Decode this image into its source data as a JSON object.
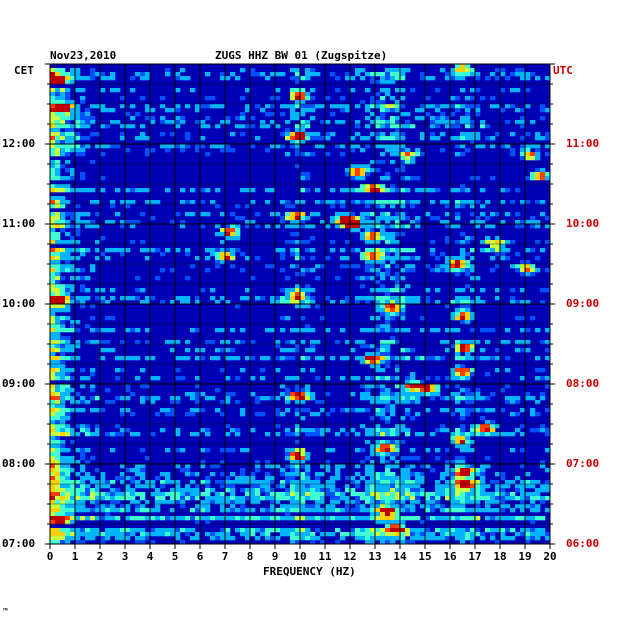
{
  "header": {
    "date": "Nov23,2010",
    "station": "ZUGS HHZ BW 01 (Zugspitze)",
    "left_zone": "CET",
    "right_zone": "UTC"
  },
  "footer": {
    "mark": "™"
  },
  "colors": {
    "background": "#0000b4",
    "grid": "#000000",
    "utc_labels": "#cc0000",
    "colormap": [
      "#000096",
      "#0000dc",
      "#0050ff",
      "#00b4ff",
      "#40ffd0",
      "#c8ff40",
      "#ffd000",
      "#ff4000",
      "#c00000"
    ]
  },
  "chart_data": {
    "type": "heatmap",
    "title": "ZUGS HHZ BW 01 (Zugspitze)",
    "subtitle": "Nov23,2010",
    "xlabel": "FREQUENCY (HZ)",
    "x_ticks": [
      0,
      1,
      2,
      3,
      4,
      5,
      6,
      7,
      8,
      9,
      10,
      11,
      12,
      13,
      14,
      15,
      16,
      17,
      18,
      19,
      20
    ],
    "xlim": [
      0,
      20
    ],
    "y_left_labels": [
      "12:00",
      "11:00",
      "10:00",
      "09:00",
      "08:00",
      "07:00"
    ],
    "y_right_labels": [
      "11:00",
      "10:00",
      "09:00",
      "08:00",
      "07:00",
      "06:00"
    ],
    "y_tick_hours_cet": [
      12,
      11,
      10,
      9,
      8,
      7
    ],
    "time_range_cet": [
      "07:00",
      "13:00"
    ],
    "time_direction": "newest at top",
    "grid": true,
    "hotspots": [
      {
        "f": 0.3,
        "t": 12.8,
        "level": 0.9
      },
      {
        "f": 0.5,
        "t": 12.45,
        "level": 0.85
      },
      {
        "f": 0.3,
        "t": 10.05,
        "level": 0.8
      },
      {
        "f": 0.4,
        "t": 7.3,
        "level": 0.8
      },
      {
        "f": 9.9,
        "t": 12.1,
        "level": 0.85
      },
      {
        "f": 10.0,
        "t": 12.6,
        "level": 0.7
      },
      {
        "f": 12.3,
        "t": 11.65,
        "level": 0.8
      },
      {
        "f": 12.9,
        "t": 11.45,
        "level": 0.7
      },
      {
        "f": 12.1,
        "t": 11.0,
        "level": 0.95
      },
      {
        "f": 11.8,
        "t": 11.05,
        "level": 0.8
      },
      {
        "f": 9.8,
        "t": 11.1,
        "level": 0.7
      },
      {
        "f": 7.2,
        "t": 10.9,
        "level": 0.8
      },
      {
        "f": 7.0,
        "t": 10.6,
        "level": 0.7
      },
      {
        "f": 12.9,
        "t": 10.85,
        "level": 0.75
      },
      {
        "f": 12.9,
        "t": 10.6,
        "level": 0.7
      },
      {
        "f": 16.3,
        "t": 10.5,
        "level": 0.75
      },
      {
        "f": 9.9,
        "t": 10.1,
        "level": 0.7
      },
      {
        "f": 13.7,
        "t": 9.95,
        "level": 0.75
      },
      {
        "f": 16.5,
        "t": 9.85,
        "level": 0.7
      },
      {
        "f": 16.6,
        "t": 9.45,
        "level": 0.8
      },
      {
        "f": 12.9,
        "t": 9.3,
        "level": 0.7
      },
      {
        "f": 16.5,
        "t": 9.15,
        "level": 0.75
      },
      {
        "f": 15.1,
        "t": 8.95,
        "level": 0.95
      },
      {
        "f": 14.5,
        "t": 8.98,
        "level": 0.8
      },
      {
        "f": 9.9,
        "t": 8.85,
        "level": 0.7
      },
      {
        "f": 17.4,
        "t": 8.45,
        "level": 0.75
      },
      {
        "f": 16.4,
        "t": 8.3,
        "level": 0.75
      },
      {
        "f": 13.4,
        "t": 8.2,
        "level": 0.8
      },
      {
        "f": 9.9,
        "t": 8.1,
        "level": 0.8
      },
      {
        "f": 16.6,
        "t": 7.9,
        "level": 0.85
      },
      {
        "f": 16.6,
        "t": 7.75,
        "level": 0.8
      },
      {
        "f": 13.8,
        "t": 7.2,
        "level": 0.95
      },
      {
        "f": 13.5,
        "t": 7.4,
        "level": 0.75
      },
      {
        "f": 16.5,
        "t": 12.95,
        "level": 0.7
      },
      {
        "f": 19.2,
        "t": 11.85,
        "level": 0.7
      },
      {
        "f": 19.6,
        "t": 11.6,
        "level": 0.7
      },
      {
        "f": 14.3,
        "t": 11.85,
        "level": 0.6
      },
      {
        "f": 17.8,
        "t": 10.75,
        "level": 0.65
      },
      {
        "f": 19.1,
        "t": 10.45,
        "level": 0.65
      }
    ]
  }
}
